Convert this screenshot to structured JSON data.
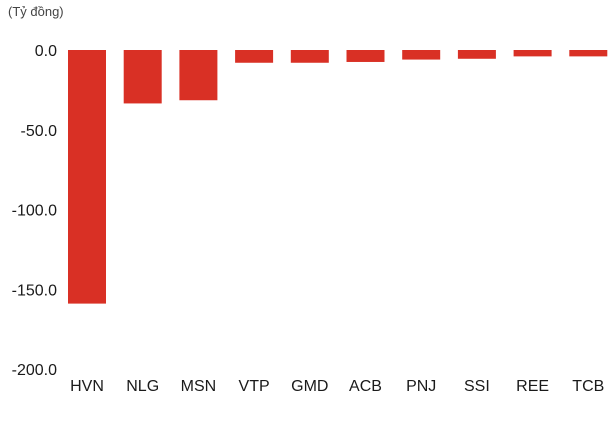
{
  "chart_data": {
    "type": "bar",
    "unit_label": "(Tỷ đồng)",
    "categories": [
      "HVN",
      "NLG",
      "MSN",
      "VTP",
      "GMD",
      "ACB",
      "PNJ",
      "SSI",
      "REE",
      "TCB"
    ],
    "values": [
      -159.0,
      -33.5,
      -31.5,
      -8.0,
      -8.0,
      -7.5,
      -6.0,
      -5.5,
      -4.0,
      -4.0
    ],
    "yticks": [
      "0.0",
      "-50.0",
      "-100.0",
      "-150.0",
      "-200.0"
    ],
    "ylim": [
      -200,
      0
    ],
    "grid": false,
    "legend": "none",
    "bar_color": "#d93025"
  }
}
